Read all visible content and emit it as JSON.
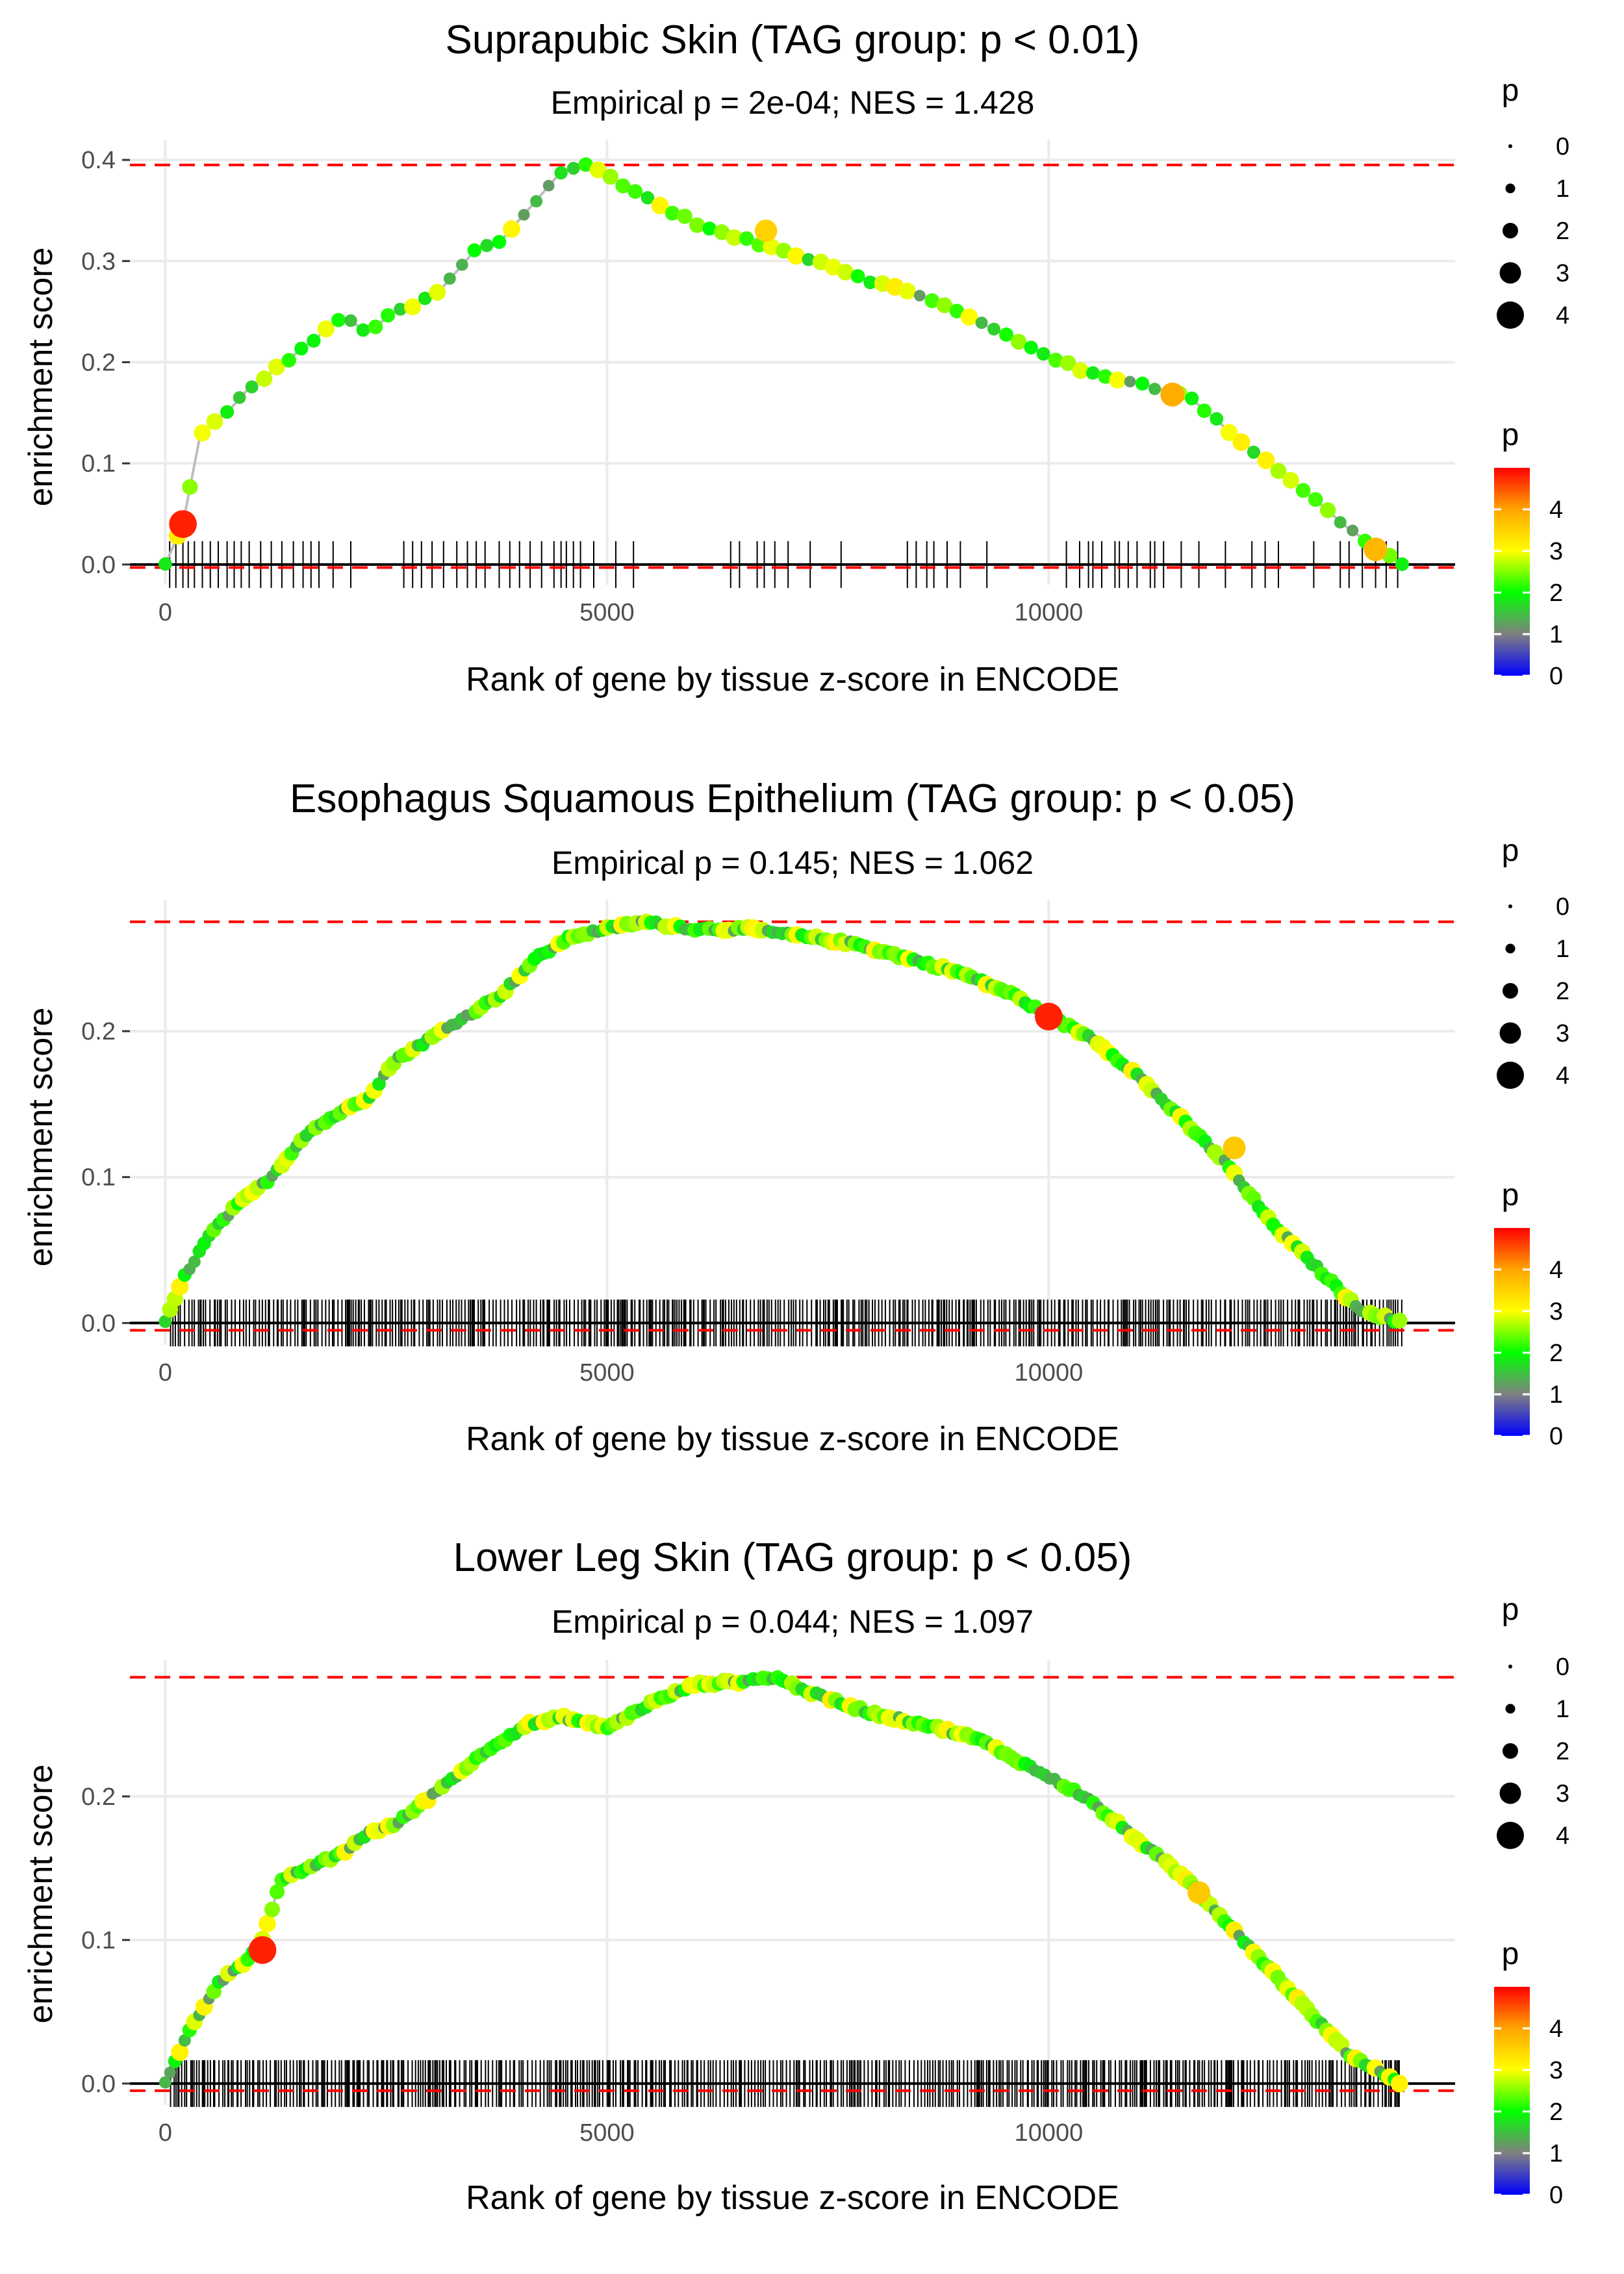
{
  "chart_data": [
    {
      "type": "line",
      "title": "Suprapubic Skin (TAG group: p < 0.01)",
      "subtitle": "Empirical p = 2e-04; NES = 1.428",
      "xlabel": "Rank of gene by tissue z-score in ENCODE",
      "ylabel": "enrichment score",
      "xlim": [
        -400,
        14600
      ],
      "ylim": [
        -0.02,
        0.42
      ],
      "x_ticks": [
        0,
        5000,
        10000
      ],
      "x_tick_labels": [
        "0",
        "5000",
        "10000"
      ],
      "y_ticks": [
        0.0,
        0.1,
        0.2,
        0.3,
        0.4
      ],
      "y_tick_labels": [
        "0.0",
        "0.1",
        "0.2",
        "0.3",
        "0.4"
      ],
      "max_es_line": 0.395,
      "min_es_line": -0.003,
      "n_genes": 14000,
      "series": [
        {
          "name": "enrichment score",
          "x": [
            0,
            200,
            400,
            700,
            900,
            1200,
            1500,
            1800,
            2000,
            2300,
            2600,
            2800,
            3100,
            3300,
            3500,
            3800,
            4000,
            4200,
            4500,
            4800,
            5200,
            5700,
            6200,
            6800,
            7400,
            8000,
            8600,
            9200,
            9800,
            10400,
            11000,
            11600,
            12200,
            12800,
            13400,
            14000
          ],
          "y": [
            0.0,
            0.04,
            0.13,
            0.15,
            0.17,
            0.19,
            0.21,
            0.23,
            0.245,
            0.23,
            0.25,
            0.255,
            0.27,
            0.29,
            0.31,
            0.32,
            0.34,
            0.36,
            0.39,
            0.395,
            0.375,
            0.35,
            0.33,
            0.315,
            0.3,
            0.28,
            0.265,
            0.24,
            0.215,
            0.19,
            0.18,
            0.165,
            0.12,
            0.08,
            0.035,
            0.0
          ]
        }
      ],
      "highlight_points": [
        {
          "x": 200,
          "y": 0.04,
          "p": 4.8
        },
        {
          "x": 6800,
          "y": 0.33,
          "p": 3.5
        },
        {
          "x": 11400,
          "y": 0.168,
          "p": 3.9
        },
        {
          "x": 13700,
          "y": 0.015,
          "p": 3.8
        }
      ],
      "gene_ranks": [
        50,
        120,
        200,
        260,
        330,
        420,
        510,
        600,
        700,
        780,
        860,
        950,
        1080,
        1200,
        1320,
        1450,
        1560,
        1650,
        1740,
        1900,
        2100,
        2700,
        2800,
        2900,
        3020,
        3150,
        3300,
        3420,
        3520,
        3620,
        3780,
        3900,
        4010,
        4130,
        4260,
        4400,
        4480,
        4540,
        4620,
        4700,
        4850,
        5100,
        5300,
        6400,
        6500,
        6700,
        6780,
        6900,
        7050,
        7300,
        7650,
        8400,
        8500,
        8620,
        8700,
        8850,
        9000,
        9300,
        10200,
        10350,
        10450,
        10500,
        10600,
        10750,
        10800,
        10900,
        11000,
        11150,
        11200,
        11300,
        11500,
        11700,
        12000,
        12300,
        12450,
        12600,
        13000,
        13300,
        13400,
        13550,
        13700,
        13820,
        13950
      ]
    },
    {
      "type": "line",
      "title": "Esophagus Squamous Epithelium (TAG group: p < 0.05)",
      "subtitle": "Empirical p = 0.145; NES = 1.062",
      "xlabel": "Rank of gene by tissue z-score in ENCODE",
      "ylabel": "enrichment score",
      "xlim": [
        -400,
        14600
      ],
      "ylim": [
        -0.015,
        0.29
      ],
      "x_ticks": [
        0,
        5000,
        10000
      ],
      "x_tick_labels": [
        "0",
        "5000",
        "10000"
      ],
      "y_ticks": [
        0.0,
        0.1,
        0.2
      ],
      "y_tick_labels": [
        "0.0",
        "0.1",
        "0.2"
      ],
      "max_es_line": 0.275,
      "min_es_line": -0.005,
      "n_genes": 14000,
      "series": [
        {
          "name": "enrichment score",
          "x": [
            0,
            200,
            500,
            800,
            1200,
            1600,
            2000,
            2300,
            2600,
            3000,
            3400,
            3800,
            4200,
            4600,
            5000,
            5400,
            6000,
            6600,
            7200,
            7800,
            8400,
            9000,
            9600,
            10000,
            10500,
            11000,
            11500,
            12000,
            12500,
            13000,
            13500,
            14000
          ],
          "y": [
            0.0,
            0.03,
            0.06,
            0.08,
            0.1,
            0.13,
            0.145,
            0.155,
            0.18,
            0.195,
            0.21,
            0.225,
            0.25,
            0.265,
            0.27,
            0.275,
            0.27,
            0.27,
            0.265,
            0.26,
            0.25,
            0.24,
            0.225,
            0.21,
            0.195,
            0.17,
            0.14,
            0.11,
            0.07,
            0.04,
            0.01,
            0.0
          ]
        }
      ],
      "highlight_points": [
        {
          "x": 10000,
          "y": 0.21,
          "p": 4.8
        },
        {
          "x": 12100,
          "y": 0.12,
          "p": 3.6
        }
      ],
      "rug_density": "dense"
    },
    {
      "type": "line",
      "title": "Lower Leg Skin (TAG group: p < 0.05)",
      "subtitle": "Empirical p = 0.044; NES = 1.097",
      "xlabel": "Rank of gene by tissue z-score in ENCODE",
      "ylabel": "enrichment score",
      "xlim": [
        -400,
        14600
      ],
      "ylim": [
        -0.015,
        0.295
      ],
      "x_ticks": [
        0,
        5000,
        10000
      ],
      "x_tick_labels": [
        "0",
        "5000",
        "10000"
      ],
      "y_ticks": [
        0.0,
        0.1,
        0.2
      ],
      "y_tick_labels": [
        "0.0",
        "0.1",
        "0.2"
      ],
      "max_es_line": 0.283,
      "min_es_line": -0.005,
      "n_genes": 14000,
      "series": [
        {
          "name": "enrichment score",
          "x": [
            0,
            300,
            600,
            900,
            1100,
            1300,
            1600,
            2000,
            2300,
            2600,
            2900,
            3300,
            3700,
            4100,
            4500,
            5000,
            5500,
            6000,
            6500,
            6900,
            7400,
            8000,
            8600,
            9200,
            9800,
            10400,
            11000,
            11600,
            12200,
            12800,
            13400,
            14000
          ],
          "y": [
            0.0,
            0.04,
            0.07,
            0.085,
            0.1,
            0.14,
            0.15,
            0.16,
            0.175,
            0.18,
            0.195,
            0.215,
            0.235,
            0.25,
            0.255,
            0.248,
            0.265,
            0.278,
            0.28,
            0.283,
            0.27,
            0.258,
            0.25,
            0.24,
            0.22,
            0.2,
            0.17,
            0.14,
            0.1,
            0.06,
            0.02,
            0.0
          ]
        }
      ],
      "highlight_points": [
        {
          "x": 1100,
          "y": 0.093,
          "p": 4.8
        },
        {
          "x": 11700,
          "y": 0.133,
          "p": 3.6
        }
      ],
      "rug_density": "dense"
    }
  ],
  "legend": {
    "size_title": "p",
    "size_labels": [
      "0",
      "1",
      "2",
      "3",
      "4"
    ],
    "color_title": "p",
    "color_labels": [
      "0",
      "1",
      "2",
      "3",
      "4"
    ],
    "colors": {
      "p0": "#0000ff",
      "p1": "#808080",
      "p2": "#00ff00",
      "p3": "#ffff00",
      "p4": "#ffa500",
      "p5": "#ff0000",
      "path_line": "#bebebe",
      "ref_line": "#ff0000",
      "grid": "#ebebeb"
    }
  }
}
